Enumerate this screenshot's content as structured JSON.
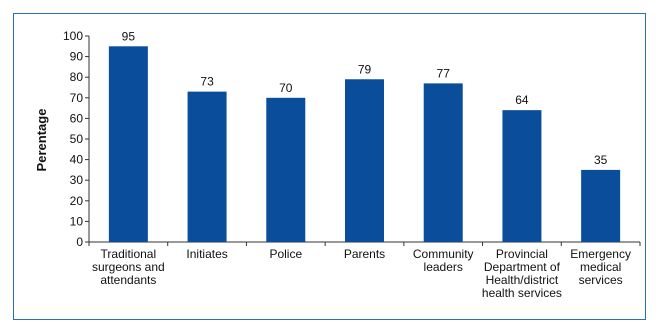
{
  "chart_data": {
    "type": "bar",
    "title": "",
    "xlabel": "",
    "ylabel": "Perentage",
    "ylim": [
      0,
      100
    ],
    "yticks": [
      0,
      10,
      20,
      30,
      40,
      50,
      60,
      70,
      80,
      90,
      100
    ],
    "categories": [
      [
        "Traditional",
        "surgeons and",
        "attendants"
      ],
      [
        "Initiates"
      ],
      [
        "Police"
      ],
      [
        "Parents"
      ],
      [
        "Community",
        "leaders"
      ],
      [
        "Provincial",
        "Department of",
        "Health/district",
        "health services"
      ],
      [
        "Emergency",
        "medical",
        "services"
      ]
    ],
    "values": [
      95,
      73,
      70,
      79,
      77,
      64,
      35
    ],
    "data_labels": [
      "95",
      "73",
      "70",
      "79",
      "77",
      "64",
      "35"
    ],
    "bar_color": "#0a4e9b",
    "frame_color": "#2a6fb5",
    "grid": false,
    "legend": "none"
  }
}
